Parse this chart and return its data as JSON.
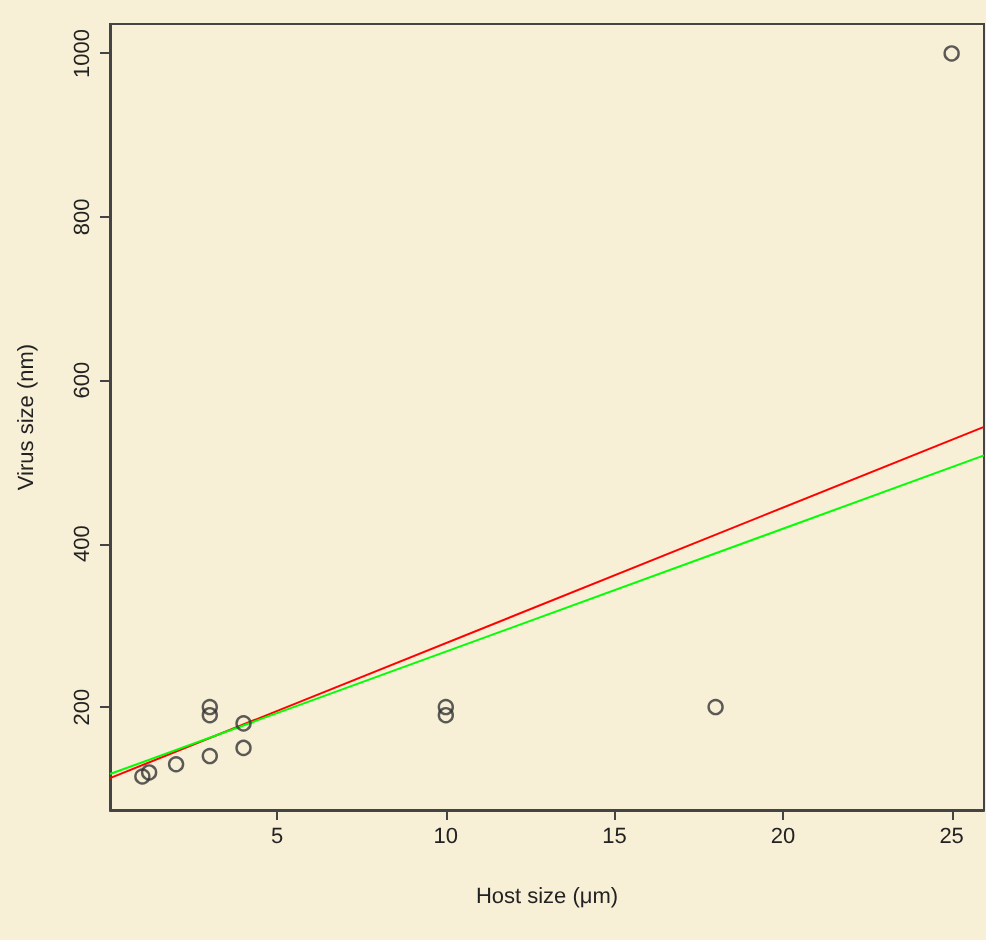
{
  "chart_data": {
    "type": "scatter",
    "xlabel": "Host size (μm)",
    "ylabel": "Virus size (nm)",
    "xlim": [
      0.04,
      25.96
    ],
    "xticks": [
      5,
      10,
      15,
      20,
      25
    ],
    "ylim": [
      74,
      1036
    ],
    "yticks": [
      200,
      400,
      600,
      800,
      1000
    ],
    "grid": false,
    "marker": "circle",
    "series": [
      {
        "color": "#333333",
        "x": [
          1,
          1.2,
          2,
          3,
          3,
          3,
          4,
          4,
          10,
          10,
          18,
          25
        ],
        "values": [
          115,
          120,
          130,
          200,
          190,
          140,
          180,
          150,
          200,
          190,
          200,
          1000
        ]
      },
      {
        "type": "line",
        "color": "#ff0000",
        "marker": "none",
        "x": [
          0.04,
          25.96
        ],
        "values": [
          113,
          543
        ]
      },
      {
        "type": "line",
        "color": "#00ff00",
        "marker": "none",
        "x": [
          0.04,
          25.96
        ],
        "values": [
          118,
          508
        ]
      }
    ]
  }
}
